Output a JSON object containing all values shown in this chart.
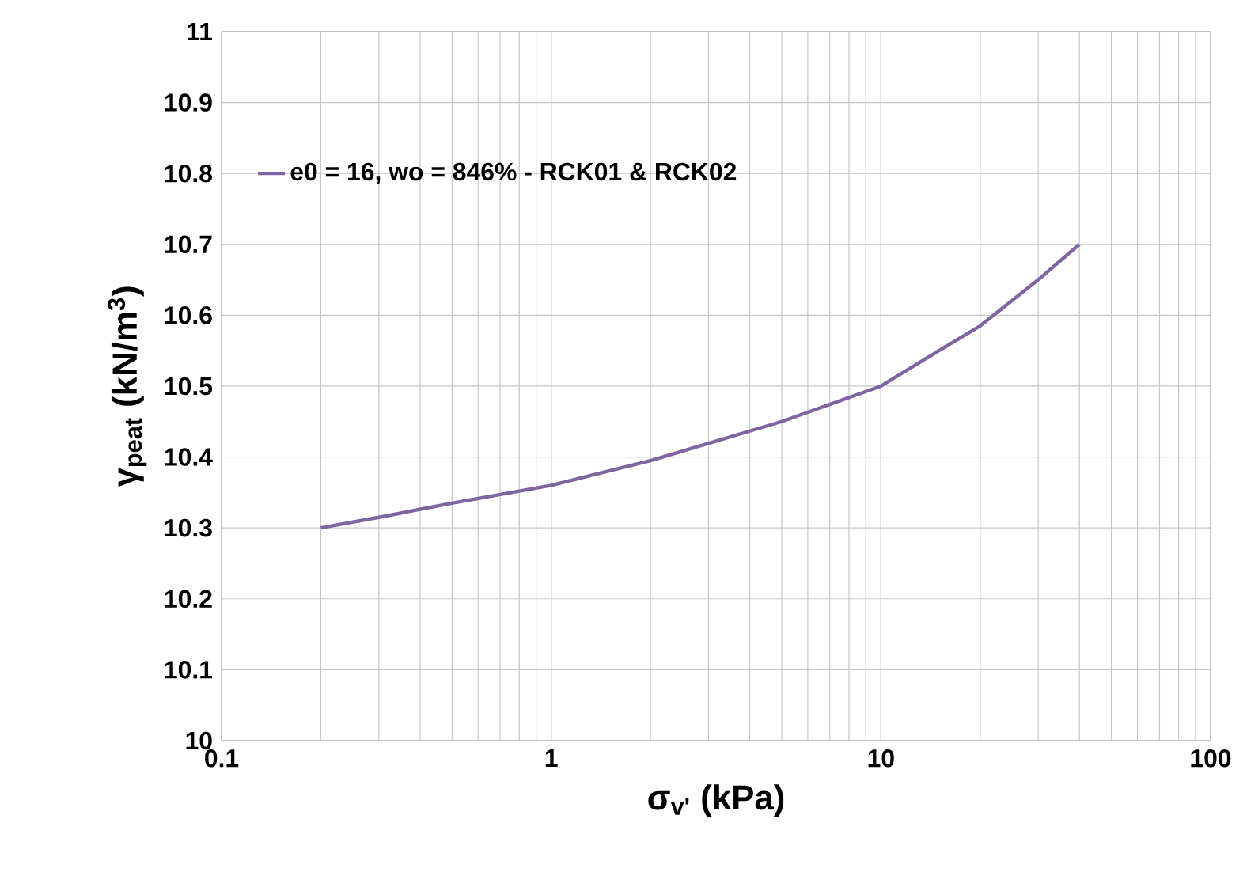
{
  "chart_data": {
    "type": "line",
    "xlabel": "σ$_{v'}$ (kPa)",
    "ylabel": "γ$_{peat}$ (kN/m$^{3}$)",
    "log": "x",
    "xlim": [
      0.1,
      100
    ],
    "xticks": [
      0.1,
      1,
      10,
      100
    ],
    "ylim": [
      10,
      11
    ],
    "yticks": [
      10,
      10.1,
      10.2,
      10.3,
      10.4,
      10.5,
      10.6,
      10.7,
      10.8,
      10.9,
      11
    ],
    "grid": true,
    "legend": "top left",
    "marker": "none",
    "line_style": "solid",
    "series": [
      {
        "name": "e0 = 16, wo = 846% - RCK01 & RCK02",
        "color": "#8064a2",
        "x": [
          0.2,
          0.3,
          0.5,
          1,
          2,
          5,
          10,
          15,
          20,
          30,
          40
        ],
        "values": [
          10.3,
          10.315,
          10.335,
          10.36,
          10.395,
          10.45,
          10.5,
          10.55,
          10.585,
          10.65,
          10.7
        ]
      }
    ]
  }
}
